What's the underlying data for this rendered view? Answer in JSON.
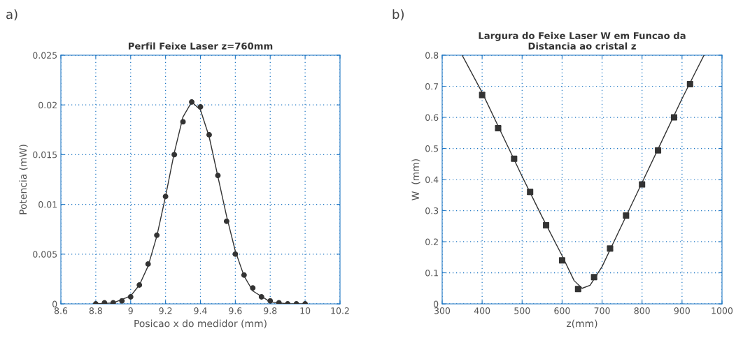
{
  "chart_data": [
    {
      "type": "scatter",
      "title": "Perfil Feixe Laser z=760mm",
      "xlabel": "Posicao x do medidor (mm)",
      "ylabel": "Potencia (mW)",
      "annotations": [
        "a)"
      ],
      "xlim": [
        8.6,
        10.2
      ],
      "xticks": [
        8.6,
        8.8,
        9,
        9.2,
        9.4,
        9.6,
        9.8,
        10,
        10.2
      ],
      "ylim": [
        0,
        0.025
      ],
      "yticks": [
        0,
        0.005,
        0.01,
        0.015,
        0.02,
        0.025
      ],
      "grid": true,
      "legend": false,
      "series": [
        {
          "marker": "circle",
          "color": "#333333",
          "x": [
            8.8,
            8.85,
            8.9,
            8.95,
            9.0,
            9.05,
            9.1,
            9.15,
            9.2,
            9.25,
            9.3,
            9.35,
            9.4,
            9.45,
            9.5,
            9.55,
            9.6,
            9.65,
            9.7,
            9.75,
            9.8,
            9.85,
            9.9,
            9.95,
            10.0
          ],
          "values": [
            0,
            0.0001,
            0.0001,
            0.0003,
            0.0007,
            0.0019,
            0.004,
            0.0069,
            0.0108,
            0.015,
            0.0183,
            0.0203,
            0.0198,
            0.017,
            0.0129,
            0.0083,
            0.005,
            0.0029,
            0.0016,
            0.0007,
            0.0003,
            0.0001,
            0,
            0,
            0
          ]
        },
        {
          "type": "line",
          "marker": "none",
          "color": "#333333",
          "x": [
            8.8,
            8.9,
            9.0,
            9.05,
            9.1,
            9.15,
            9.2,
            9.25,
            9.3,
            9.35,
            9.4,
            9.45,
            9.5,
            9.55,
            9.6,
            9.65,
            9.7,
            9.8,
            9.9,
            10.0
          ],
          "values": [
            0,
            0.0001,
            0.0008,
            0.0019,
            0.0038,
            0.0068,
            0.0108,
            0.0152,
            0.0188,
            0.0203,
            0.0195,
            0.0168,
            0.0128,
            0.0088,
            0.0053,
            0.0028,
            0.0013,
            0.0002,
            0,
            0
          ]
        }
      ]
    },
    {
      "type": "scatter",
      "title": "Largura do Feixe Laser W em Funcao da\nDistancia ao cristal z",
      "xlabel": "z(mm)",
      "ylabel": "W  (mm)",
      "annotations": [
        "b)"
      ],
      "xlim": [
        300,
        1000
      ],
      "xticks": [
        300,
        400,
        500,
        600,
        700,
        800,
        900,
        1000
      ],
      "ylim": [
        0,
        0.8
      ],
      "yticks": [
        0,
        0.1,
        0.2,
        0.3,
        0.4,
        0.5,
        0.6,
        0.7,
        0.8
      ],
      "grid": true,
      "legend": false,
      "series": [
        {
          "marker": "square",
          "color": "#333333",
          "x": [
            400,
            440,
            480,
            520,
            560,
            600,
            640,
            680,
            720,
            760,
            800,
            840,
            880,
            920
          ],
          "values": [
            0.672,
            0.565,
            0.467,
            0.36,
            0.253,
            0.14,
            0.048,
            0.086,
            0.178,
            0.284,
            0.384,
            0.494,
            0.6,
            0.707
          ],
          "errors": [
            0.008,
            0.005,
            0.005,
            0.008,
            0.008,
            0.005,
            0.005,
            0.005,
            0.005,
            0.005,
            0.005,
            0.005,
            0.005,
            0.006
          ]
        },
        {
          "type": "line",
          "marker": "none",
          "color": "#333333",
          "x": [
            350,
            400,
            450,
            500,
            550,
            600,
            630,
            650,
            670,
            700,
            750,
            800,
            850,
            900,
            955
          ],
          "values": [
            0.8,
            0.68,
            0.545,
            0.41,
            0.28,
            0.155,
            0.075,
            0.05,
            0.06,
            0.12,
            0.255,
            0.39,
            0.525,
            0.66,
            0.8
          ]
        }
      ]
    }
  ]
}
